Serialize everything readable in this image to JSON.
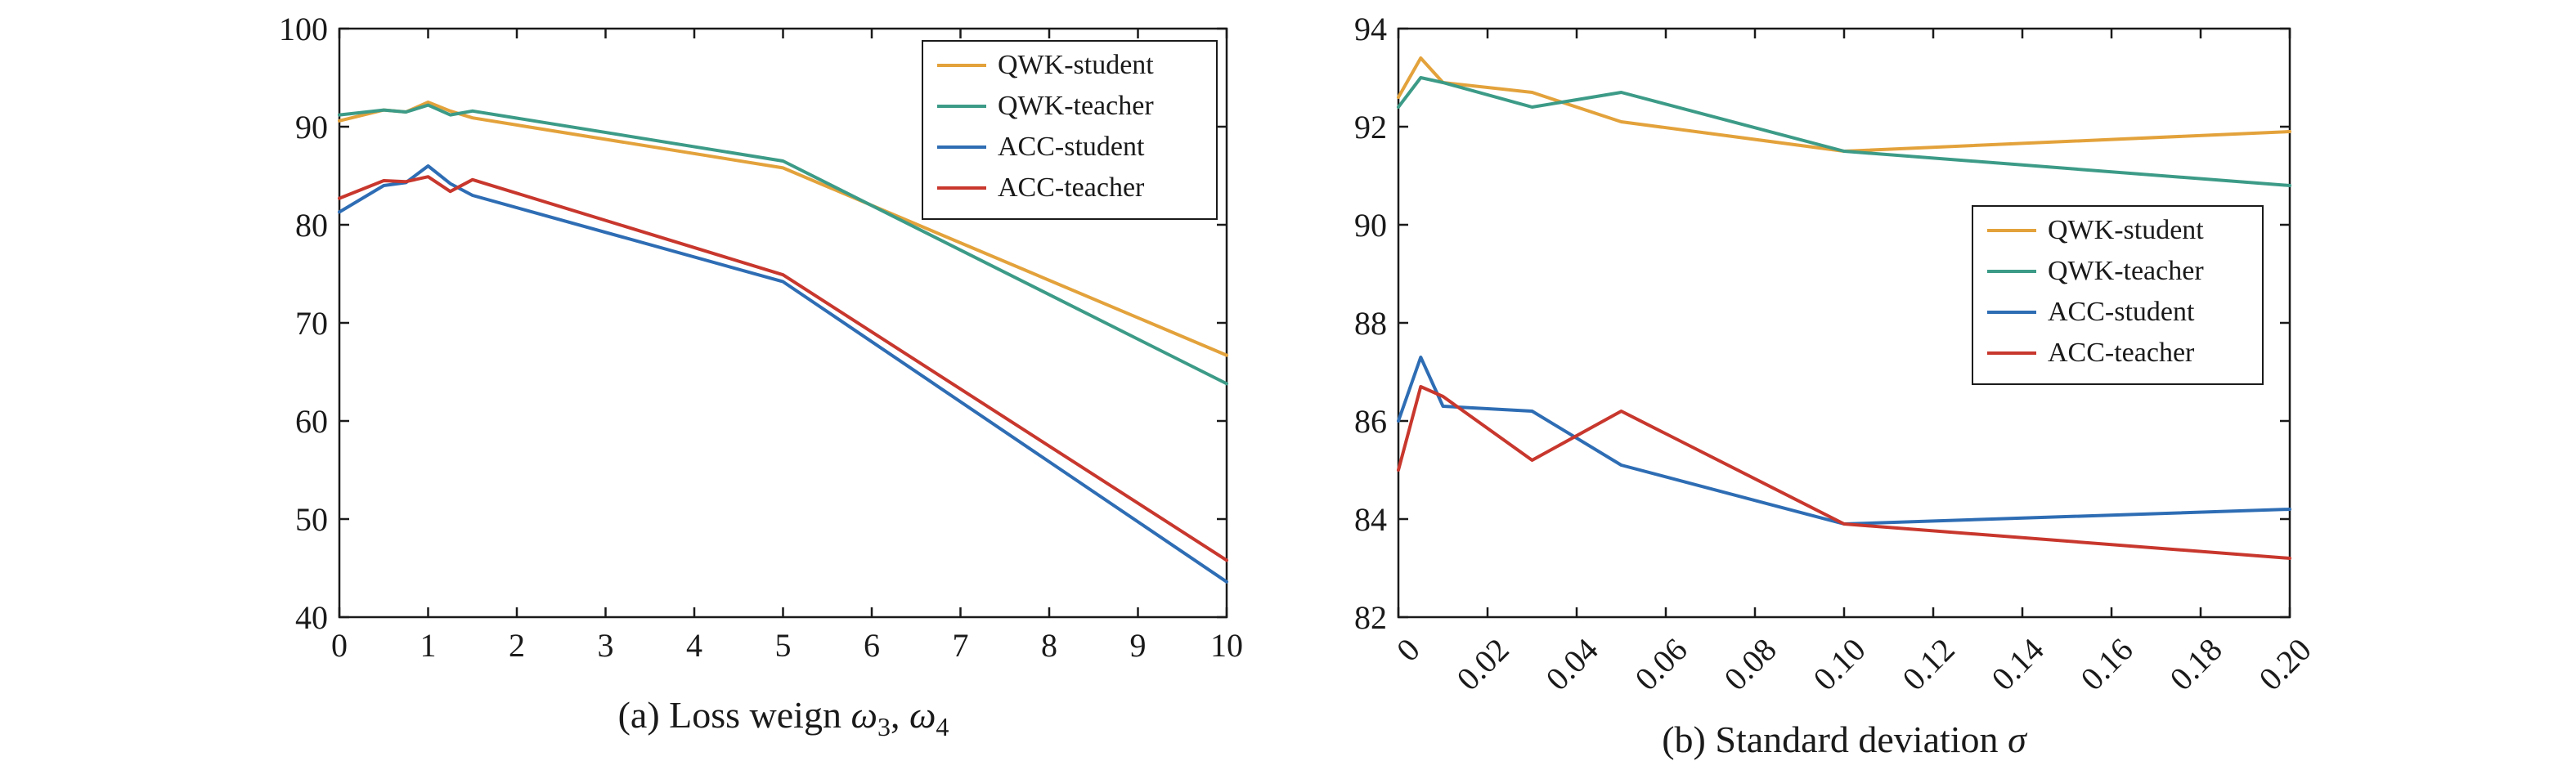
{
  "chart_data": [
    {
      "type": "line",
      "caption": "(a) Loss weign ω3, ω4",
      "caption_parts": {
        "pre": "(a) Loss weign ",
        "sym1": "ω",
        "sub1": "3",
        "sep": ", ",
        "sym2": "ω",
        "sub2": "4"
      },
      "xlim": [
        0,
        10
      ],
      "ylim": [
        40,
        100
      ],
      "xticks": [
        0,
        1,
        2,
        3,
        4,
        5,
        6,
        7,
        8,
        9,
        10
      ],
      "xtick_labels": [
        "0",
        "1",
        "2",
        "3",
        "4",
        "5",
        "6",
        "7",
        "8",
        "9",
        "10"
      ],
      "yticks": [
        40,
        50,
        60,
        70,
        80,
        90,
        100
      ],
      "ytick_labels": [
        "40",
        "50",
        "60",
        "70",
        "80",
        "90",
        "100"
      ],
      "legend_position": "top-right",
      "grid": false,
      "series": [
        {
          "name": "QWK-student",
          "color": "#E3A23B",
          "x": [
            0,
            0.5,
            0.75,
            1,
            1.25,
            1.5,
            5,
            10
          ],
          "y": [
            90.6,
            91.7,
            91.5,
            92.5,
            91.6,
            90.9,
            85.8,
            66.7
          ]
        },
        {
          "name": "QWK-teacher",
          "color": "#3C9B87",
          "x": [
            0,
            0.5,
            0.75,
            1,
            1.25,
            1.5,
            5,
            10
          ],
          "y": [
            91.2,
            91.7,
            91.5,
            92.2,
            91.2,
            91.6,
            86.5,
            63.8
          ]
        },
        {
          "name": "ACC-student",
          "color": "#2E6DB4",
          "x": [
            0,
            0.5,
            0.75,
            1,
            1.25,
            1.5,
            5,
            10
          ],
          "y": [
            81.3,
            84.0,
            84.3,
            86.0,
            84.2,
            83.0,
            74.2,
            43.6
          ]
        },
        {
          "name": "ACC-teacher",
          "color": "#C8372D",
          "x": [
            0,
            0.5,
            0.75,
            1,
            1.25,
            1.5,
            5,
            10
          ],
          "y": [
            82.7,
            84.5,
            84.4,
            84.9,
            83.4,
            84.6,
            74.9,
            45.8
          ]
        }
      ]
    },
    {
      "type": "line",
      "caption": "(b) Standard deviation σ",
      "caption_parts": {
        "pre": "(b) Standard deviation  ",
        "sym1": "σ"
      },
      "xlim": [
        0,
        0.2
      ],
      "ylim": [
        82,
        94
      ],
      "xticks": [
        0,
        0.02,
        0.04,
        0.06,
        0.08,
        0.1,
        0.12,
        0.14,
        0.16,
        0.18,
        0.2
      ],
      "xtick_labels": [
        "0",
        "0.02",
        "0.04",
        "0.06",
        "0.08",
        "0.10",
        "0.12",
        "0.14",
        "0.16",
        "0.18",
        "0.20"
      ],
      "yticks": [
        82,
        84,
        86,
        88,
        90,
        92,
        94
      ],
      "ytick_labels": [
        "82",
        "84",
        "86",
        "88",
        "90",
        "92",
        "94"
      ],
      "legend_position": "middle-right",
      "grid": false,
      "series": [
        {
          "name": "QWK-student",
          "color": "#E3A23B",
          "x": [
            0,
            0.005,
            0.01,
            0.03,
            0.05,
            0.1,
            0.2
          ],
          "y": [
            92.6,
            93.4,
            92.9,
            92.7,
            92.1,
            91.5,
            91.9
          ]
        },
        {
          "name": "QWK-teacher",
          "color": "#3C9B87",
          "x": [
            0,
            0.005,
            0.01,
            0.03,
            0.05,
            0.1,
            0.2
          ],
          "y": [
            92.4,
            93.0,
            92.9,
            92.4,
            92.7,
            91.5,
            90.8
          ]
        },
        {
          "name": "ACC-student",
          "color": "#2E6DB4",
          "x": [
            0,
            0.005,
            0.01,
            0.03,
            0.05,
            0.1,
            0.2
          ],
          "y": [
            86.0,
            87.3,
            86.3,
            86.2,
            85.1,
            83.9,
            84.2
          ]
        },
        {
          "name": "ACC-teacher",
          "color": "#C8372D",
          "x": [
            0,
            0.005,
            0.01,
            0.03,
            0.05,
            0.1,
            0.2
          ],
          "y": [
            85.0,
            86.7,
            86.5,
            85.2,
            86.2,
            83.9,
            83.2
          ]
        }
      ]
    }
  ]
}
